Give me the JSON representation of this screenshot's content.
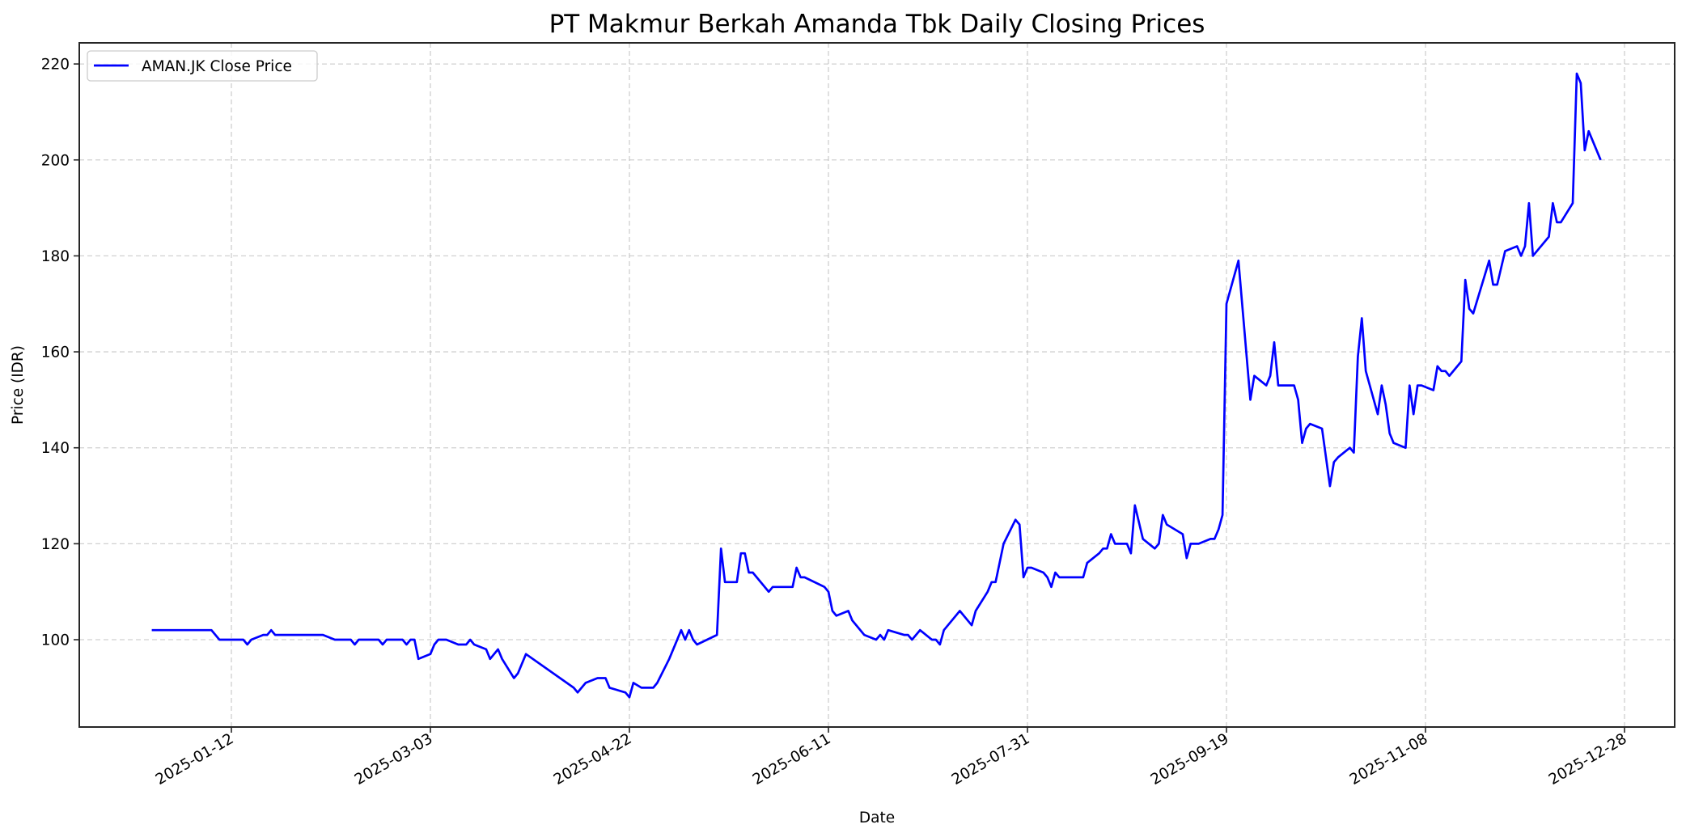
{
  "chart_data": {
    "type": "line",
    "title": "PT Makmur Berkah Amanda Tbk Daily Closing Prices",
    "xlabel": "Date",
    "ylabel": "Price (IDR)",
    "ylim": [
      81.8,
      224.4
    ],
    "xlim": [
      "2024-12-06",
      "2026-01-10"
    ],
    "grid": true,
    "legend_position": "upper left",
    "xticks": [
      "2025-01-12",
      "2025-03-03",
      "2025-04-22",
      "2025-06-11",
      "2025-07-31",
      "2025-09-19",
      "2025-11-08",
      "2025-12-28"
    ],
    "yticks": [
      100,
      120,
      140,
      160,
      180,
      200,
      220
    ],
    "series": [
      {
        "name": "AMAN.JK Close Price",
        "color": "#0000ff",
        "x": [
          "2024-12-23",
          "2025-01-07",
          "2025-01-09",
          "2025-01-15",
          "2025-01-16",
          "2025-01-17",
          "2025-01-20",
          "2025-01-21",
          "2025-01-22",
          "2025-01-23",
          "2025-02-04",
          "2025-02-07",
          "2025-02-11",
          "2025-02-12",
          "2025-02-13",
          "2025-02-18",
          "2025-02-19",
          "2025-02-20",
          "2025-02-24",
          "2025-02-25",
          "2025-02-26",
          "2025-02-27",
          "2025-02-28",
          "2025-03-03",
          "2025-03-04",
          "2025-03-05",
          "2025-03-07",
          "2025-03-10",
          "2025-03-12",
          "2025-03-13",
          "2025-03-14",
          "2025-03-17",
          "2025-03-18",
          "2025-03-20",
          "2025-03-21",
          "2025-03-24",
          "2025-03-25",
          "2025-03-27",
          "2025-04-08",
          "2025-04-09",
          "2025-04-11",
          "2025-04-14",
          "2025-04-16",
          "2025-04-17",
          "2025-04-21",
          "2025-04-22",
          "2025-04-23",
          "2025-04-25",
          "2025-04-28",
          "2025-04-29",
          "2025-05-02",
          "2025-05-05",
          "2025-05-06",
          "2025-05-07",
          "2025-05-08",
          "2025-05-09",
          "2025-05-14",
          "2025-05-15",
          "2025-05-16",
          "2025-05-19",
          "2025-05-20",
          "2025-05-21",
          "2025-05-22",
          "2025-05-23",
          "2025-05-27",
          "2025-05-28",
          "2025-06-02",
          "2025-06-03",
          "2025-06-04",
          "2025-06-05",
          "2025-06-10",
          "2025-06-11",
          "2025-06-12",
          "2025-06-13",
          "2025-06-16",
          "2025-06-17",
          "2025-06-20",
          "2025-06-23",
          "2025-06-24",
          "2025-06-25",
          "2025-06-26",
          "2025-06-30",
          "2025-07-01",
          "2025-07-02",
          "2025-07-04",
          "2025-07-07",
          "2025-07-08",
          "2025-07-09",
          "2025-07-10",
          "2025-07-14",
          "2025-07-17",
          "2025-07-18",
          "2025-07-21",
          "2025-07-22",
          "2025-07-23",
          "2025-07-25",
          "2025-07-28",
          "2025-07-29",
          "2025-07-30",
          "2025-07-31",
          "2025-08-01",
          "2025-08-04",
          "2025-08-05",
          "2025-08-06",
          "2025-08-07",
          "2025-08-08",
          "2025-08-14",
          "2025-08-15",
          "2025-08-18",
          "2025-08-19",
          "2025-08-20",
          "2025-08-21",
          "2025-08-22",
          "2025-08-25",
          "2025-08-26",
          "2025-08-27",
          "2025-08-29",
          "2025-09-01",
          "2025-09-02",
          "2025-09-03",
          "2025-09-04",
          "2025-09-08",
          "2025-09-09",
          "2025-09-10",
          "2025-09-12",
          "2025-09-15",
          "2025-09-16",
          "2025-09-17",
          "2025-09-18",
          "2025-09-19",
          "2025-09-22",
          "2025-09-25",
          "2025-09-26",
          "2025-09-29",
          "2025-09-30",
          "2025-10-01",
          "2025-10-02",
          "2025-10-06",
          "2025-10-07",
          "2025-10-08",
          "2025-10-09",
          "2025-10-10",
          "2025-10-13",
          "2025-10-15",
          "2025-10-16",
          "2025-10-17",
          "2025-10-20",
          "2025-10-21",
          "2025-10-22",
          "2025-10-23",
          "2025-10-24",
          "2025-10-27",
          "2025-10-28",
          "2025-10-29",
          "2025-10-30",
          "2025-10-31",
          "2025-11-03",
          "2025-11-04",
          "2025-11-05",
          "2025-11-06",
          "2025-11-07",
          "2025-11-10",
          "2025-11-11",
          "2025-11-12",
          "2025-11-13",
          "2025-11-14",
          "2025-11-17",
          "2025-11-18",
          "2025-11-19",
          "2025-11-20",
          "2025-11-24",
          "2025-11-25",
          "2025-11-26",
          "2025-11-28",
          "2025-12-01",
          "2025-12-02",
          "2025-12-03",
          "2025-12-04",
          "2025-12-05",
          "2025-12-09",
          "2025-12-10",
          "2025-12-11",
          "2025-12-12",
          "2025-12-15",
          "2025-12-16",
          "2025-12-17",
          "2025-12-18",
          "2025-12-19",
          "2025-12-22"
        ],
        "values": [
          102,
          102,
          100,
          100,
          99,
          100,
          101,
          101,
          102,
          101,
          101,
          100,
          100,
          99,
          100,
          100,
          99,
          100,
          100,
          99,
          100,
          100,
          96,
          97,
          99,
          100,
          100,
          99,
          99,
          100,
          99,
          98,
          96,
          98,
          96,
          92,
          93,
          97,
          90,
          89,
          91,
          92,
          92,
          90,
          89,
          88,
          91,
          90,
          90,
          91,
          96,
          102,
          100,
          102,
          100,
          99,
          101,
          119,
          112,
          112,
          118,
          118,
          114,
          114,
          110,
          111,
          111,
          115,
          113,
          113,
          111,
          110,
          106,
          105,
          106,
          104,
          101,
          100,
          101,
          100,
          102,
          101,
          101,
          100,
          102,
          100,
          100,
          99,
          102,
          106,
          103,
          106,
          110,
          112,
          112,
          120,
          125,
          124,
          113,
          115,
          115,
          114,
          113,
          111,
          114,
          113,
          113,
          116,
          118,
          119,
          119,
          122,
          120,
          120,
          118,
          128,
          121,
          119,
          120,
          126,
          124,
          122,
          117,
          120,
          120,
          121,
          121,
          123,
          126,
          170,
          179,
          150,
          155,
          153,
          155,
          162,
          153,
          153,
          150,
          141,
          144,
          145,
          144,
          132,
          137,
          138,
          140,
          139,
          159,
          167,
          156,
          147,
          153,
          149,
          143,
          141,
          140,
          153,
          147,
          153,
          153,
          152,
          157,
          156,
          156,
          155,
          158,
          175,
          169,
          168,
          179,
          174,
          174,
          181,
          182,
          180,
          182,
          191,
          180,
          184,
          191,
          187,
          187,
          191,
          218,
          216,
          202,
          206,
          200
        ]
      }
    ]
  }
}
